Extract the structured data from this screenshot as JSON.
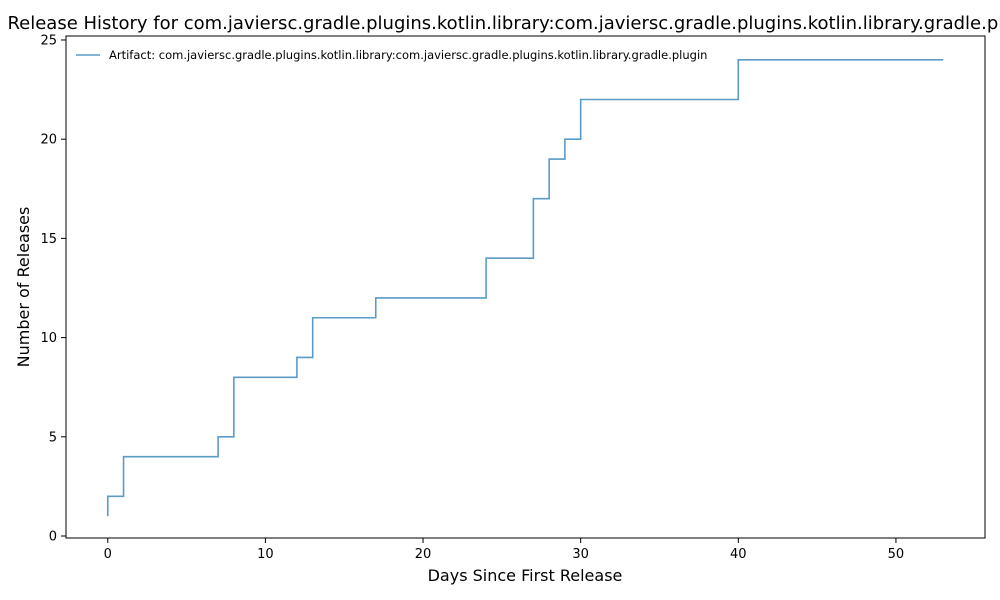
{
  "chart_data": {
    "type": "line",
    "step": "post",
    "title": "Release History for com.javiersc.gradle.plugins.kotlin.library:com.javiersc.gradle.plugins.kotlin.library.gradle.plugin",
    "xlabel": "Days Since First Release",
    "ylabel": "Number of Releases",
    "xlim": [
      -2.65,
      55.65
    ],
    "ylim": [
      -0.1,
      25.2
    ],
    "xticks": [
      0,
      10,
      20,
      30,
      40,
      50
    ],
    "yticks": [
      0,
      5,
      10,
      15,
      20,
      25
    ],
    "grid": false,
    "legend_position": "top-left",
    "series": [
      {
        "name": "Artifact: com.javiersc.gradle.plugins.kotlin.library:com.javiersc.gradle.plugins.kotlin.library.gradle.plugin",
        "color": "#5a9bc8",
        "x": [
          0,
          0,
          1,
          7,
          8,
          12,
          13,
          17,
          24,
          27,
          28,
          29,
          30,
          40,
          53
        ],
        "y": [
          1,
          2,
          4,
          5,
          8,
          9,
          11,
          12,
          14,
          17,
          19,
          20,
          22,
          24,
          24
        ]
      }
    ]
  }
}
